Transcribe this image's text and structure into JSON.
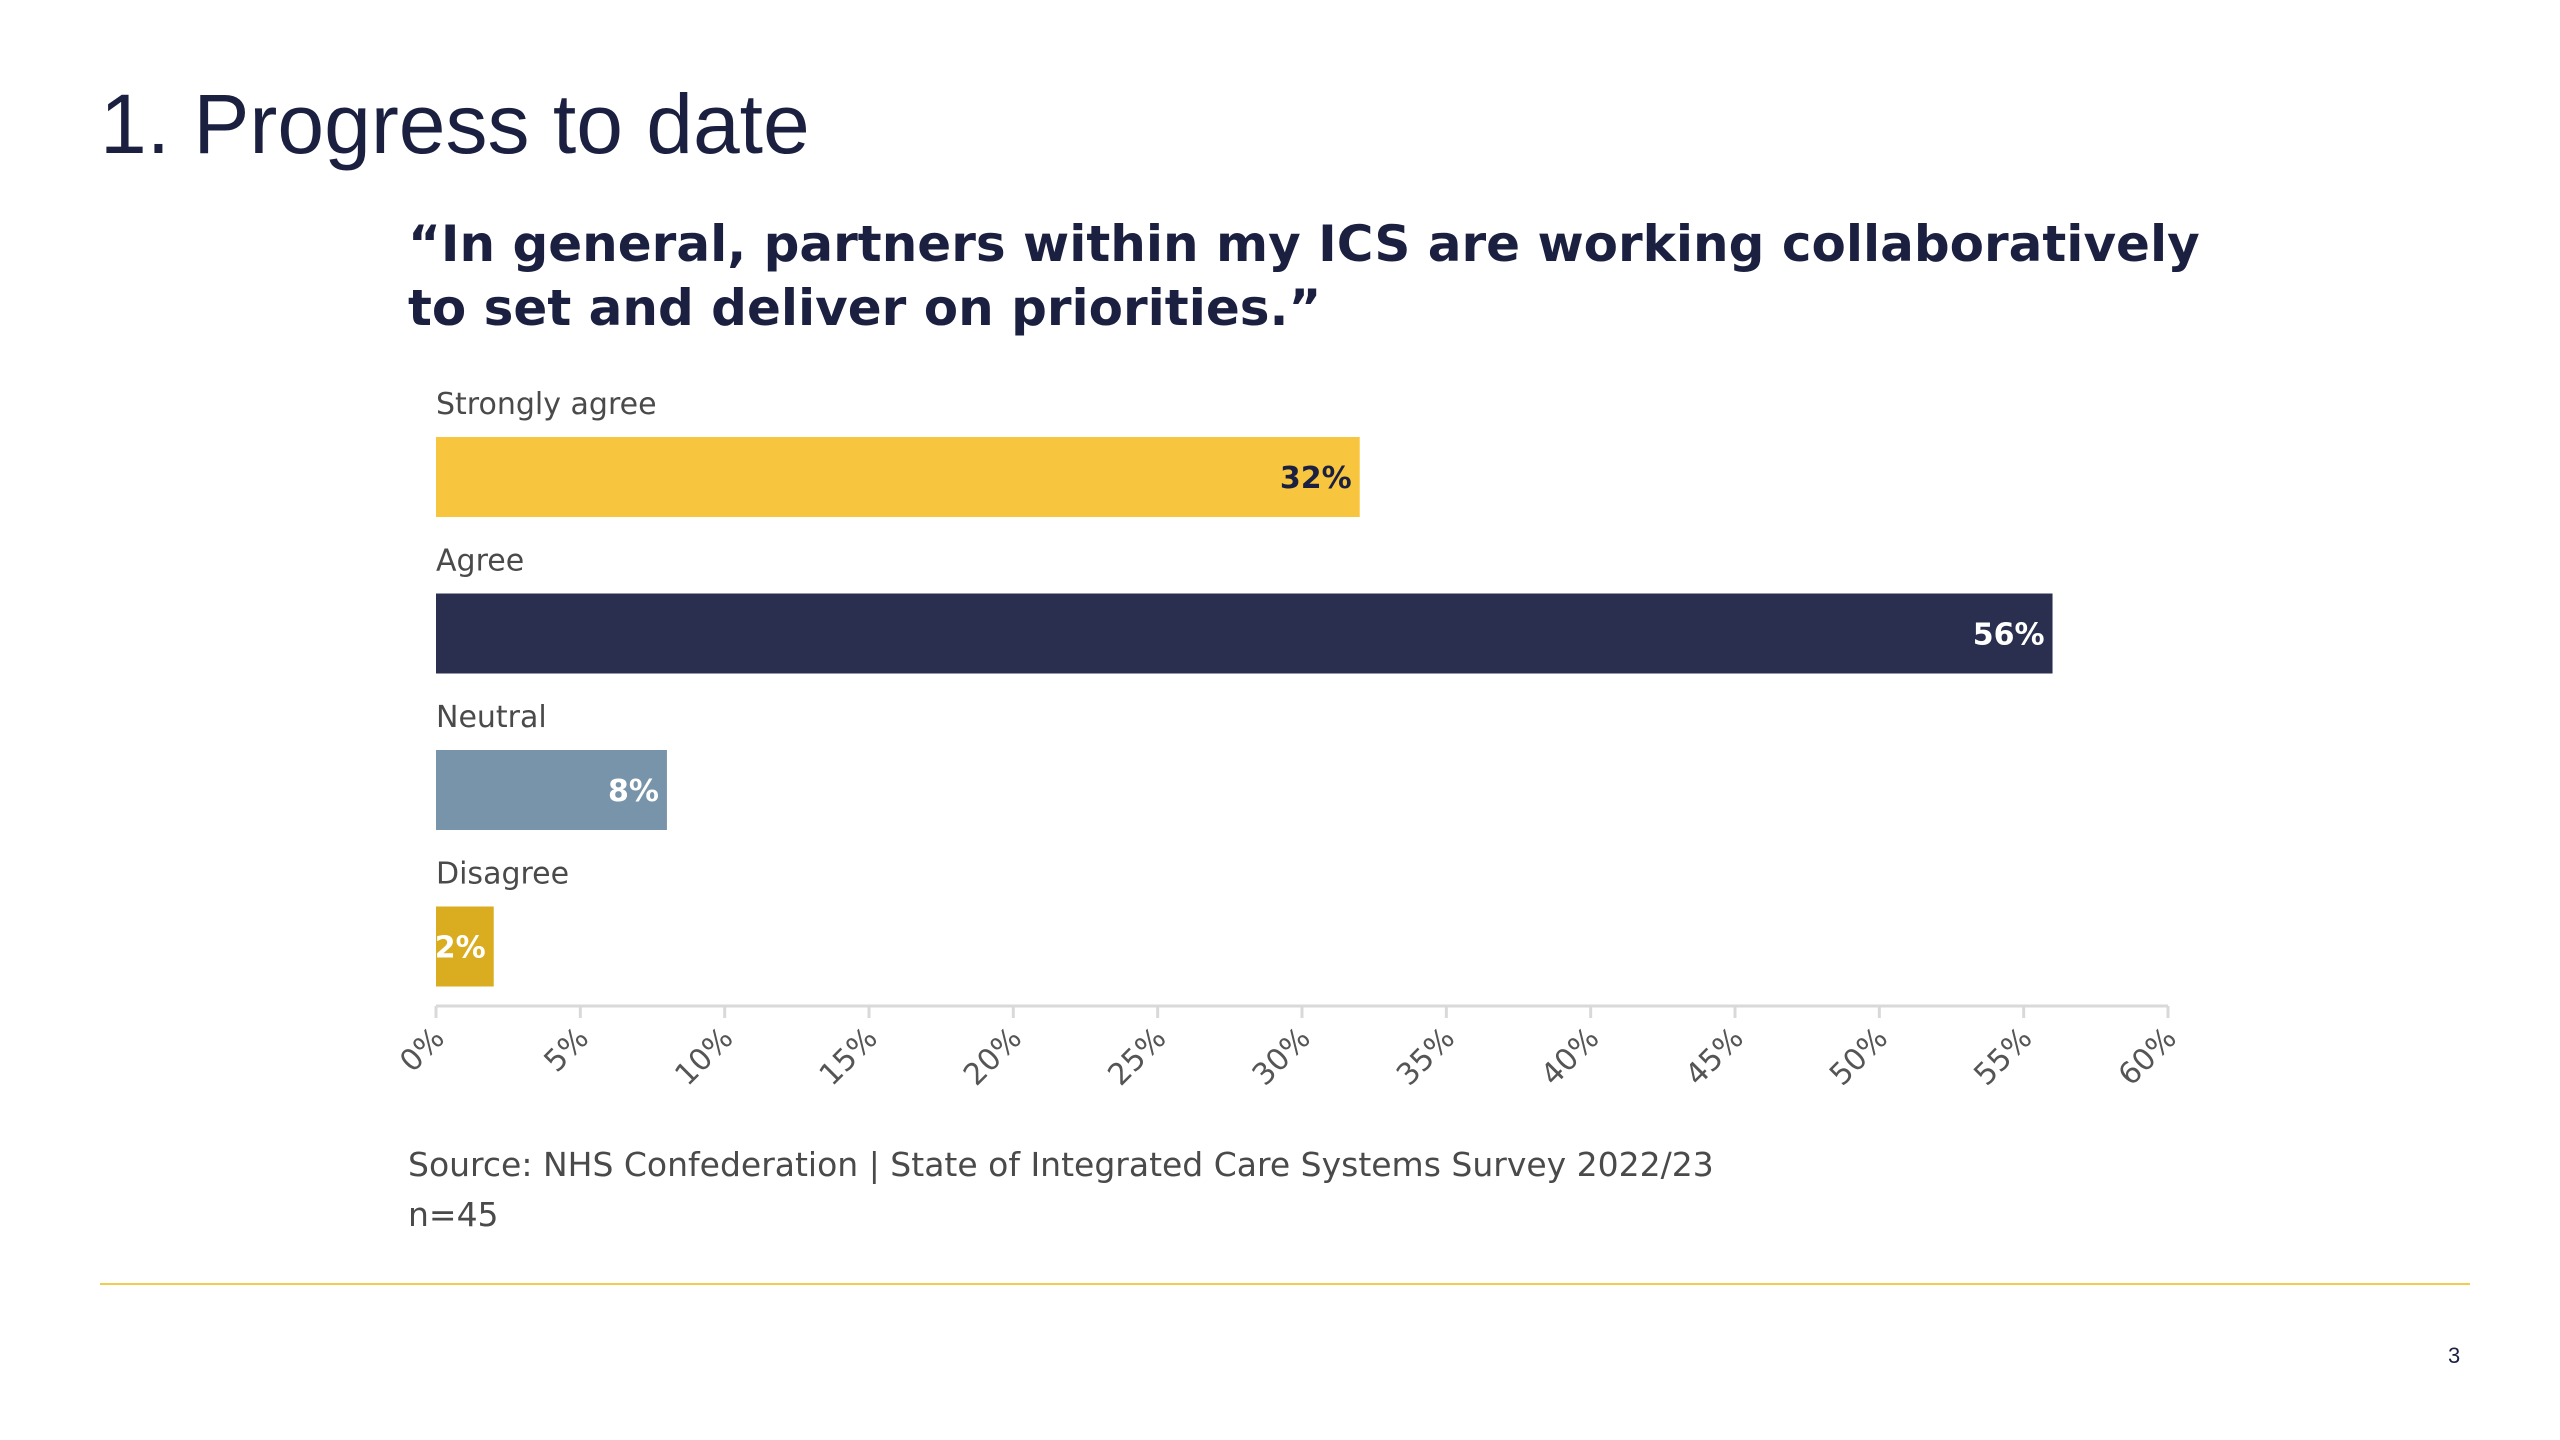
{
  "slide": {
    "title": "1. Progress to date",
    "page_number": "3"
  },
  "colors": {
    "strongly_agree": "#f8c63e",
    "agree": "#2a2f50",
    "neutral": "#7794aa",
    "disagree": "#d9ad1f",
    "axis": "#d9d9d9",
    "divider": "#f2cc4a"
  },
  "chart_data": {
    "type": "bar",
    "orientation": "horizontal",
    "title": "“In general, partners within my ICS are working collaboratively to set and deliver on priorities.”",
    "categories": [
      "Strongly agree",
      "Agree",
      "Neutral",
      "Disagree"
    ],
    "values": [
      32,
      56,
      8,
      2
    ],
    "data_labels": [
      "32%",
      "56%",
      "8%",
      "2%"
    ],
    "bar_colors": [
      "#f8c63e",
      "#2a2f50",
      "#7794aa",
      "#d9ad1f"
    ],
    "label_colors": [
      "#1b2040",
      "#ffffff",
      "#ffffff",
      "#ffffff"
    ],
    "xlim": [
      0,
      60
    ],
    "x_ticks": [
      0,
      5,
      10,
      15,
      20,
      25,
      30,
      35,
      40,
      45,
      50,
      55,
      60
    ],
    "x_tick_labels": [
      "0%",
      "5%",
      "10%",
      "15%",
      "20%",
      "25%",
      "30%",
      "35%",
      "40%",
      "45%",
      "50%",
      "55%",
      "60%"
    ],
    "grid": false,
    "legend": "none"
  },
  "footnote": {
    "source": "Source: NHS Confederation | State of Integrated Care Systems Survey 2022/23",
    "n": "n=45"
  }
}
